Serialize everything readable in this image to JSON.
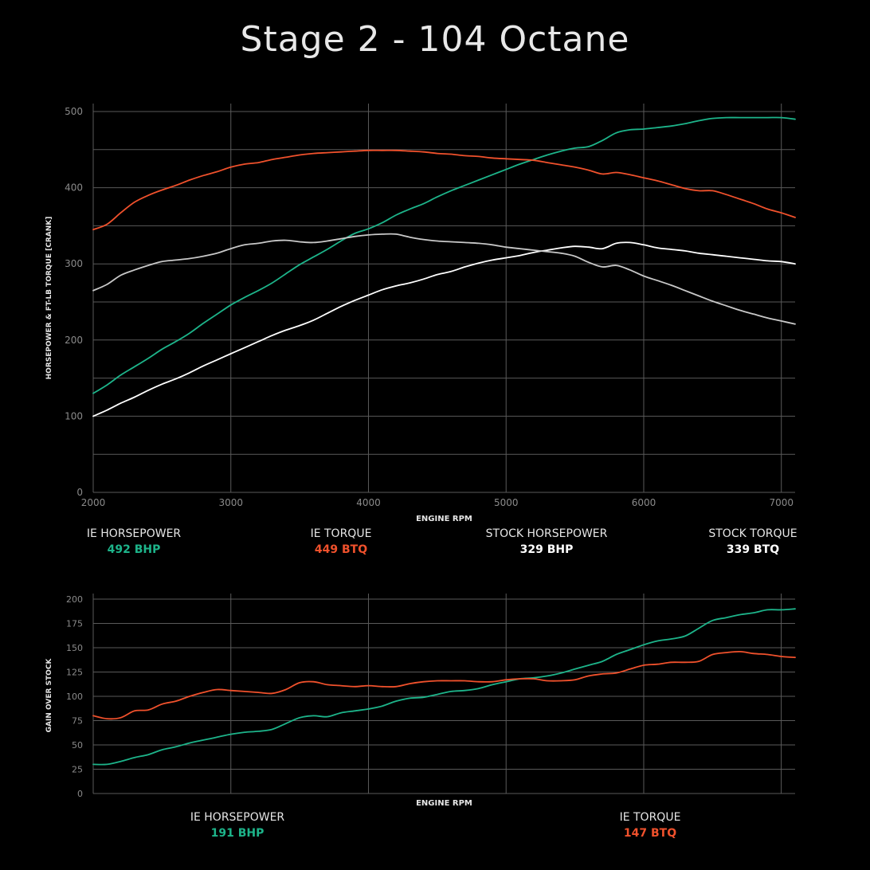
{
  "title": "Stage 2 - 104 Octane",
  "colors": {
    "background": "#000000",
    "ie_hp": "#1db48a",
    "ie_tq": "#f0512c",
    "stock_hp": "#ffffff",
    "stock_tq": "#c8c8c8",
    "grid": "#5a5a5a",
    "tick": "#8a8a8a"
  },
  "main_legend": [
    {
      "label": "IE HORSEPOWER",
      "value": "492 BHP",
      "color": "#1db48a"
    },
    {
      "label": "IE TORQUE",
      "value": "449 BTQ",
      "color": "#f0512c"
    },
    {
      "label": "STOCK HORSEPOWER",
      "value": "329 BHP",
      "color": "#ffffff"
    },
    {
      "label": "STOCK TORQUE",
      "value": "339 BTQ",
      "color": "#ffffff"
    }
  ],
  "gain_legend": [
    {
      "label": "IE HORSEPOWER",
      "value": "191 BHP",
      "color": "#1db48a"
    },
    {
      "label": "IE TORQUE",
      "value": "147 BTQ",
      "color": "#f0512c"
    }
  ],
  "chart_data": [
    {
      "type": "line",
      "title": "Stage 2 - 104 Octane",
      "xlabel": "ENGINE RPM",
      "ylabel": "HORSEPOWER & FT-LB TORQUE [CRANK]",
      "xlim": [
        2000,
        7100
      ],
      "ylim": [
        0,
        510
      ],
      "xticks": [
        2000,
        3000,
        4000,
        5000,
        6000,
        7000
      ],
      "yticks": [
        0,
        100,
        200,
        300,
        400,
        500
      ],
      "grid": true,
      "x": [
        2000,
        2100,
        2200,
        2300,
        2400,
        2500,
        2600,
        2700,
        2800,
        2900,
        3000,
        3100,
        3200,
        3300,
        3400,
        3500,
        3600,
        3700,
        3800,
        3900,
        4000,
        4100,
        4200,
        4300,
        4400,
        4500,
        4600,
        4700,
        4800,
        4900,
        5000,
        5100,
        5200,
        5300,
        5400,
        5500,
        5600,
        5700,
        5800,
        5900,
        6000,
        6100,
        6200,
        6300,
        6400,
        6500,
        6600,
        6700,
        6800,
        6900,
        7000,
        7100
      ],
      "series": [
        {
          "name": "IE HORSEPOWER",
          "color": "#1db48a",
          "values": [
            130,
            141,
            154,
            165,
            176,
            188,
            198,
            209,
            222,
            234,
            246,
            256,
            265,
            275,
            287,
            299,
            309,
            319,
            330,
            340,
            346,
            354,
            364,
            372,
            379,
            388,
            396,
            403,
            410,
            417,
            424,
            431,
            437,
            443,
            448,
            452,
            454,
            462,
            472,
            476,
            477,
            479,
            481,
            484,
            488,
            491,
            492,
            492,
            492,
            492,
            492,
            490
          ]
        },
        {
          "name": "IE TORQUE",
          "color": "#f0512c",
          "values": [
            345,
            352,
            367,
            381,
            390,
            397,
            403,
            410,
            416,
            421,
            427,
            431,
            433,
            437,
            440,
            443,
            445,
            446,
            447,
            448,
            449,
            449,
            449,
            448,
            447,
            445,
            444,
            442,
            441,
            439,
            438,
            437,
            436,
            433,
            430,
            427,
            423,
            418,
            420,
            417,
            413,
            409,
            404,
            399,
            396,
            396,
            391,
            385,
            379,
            372,
            367,
            361
          ]
        },
        {
          "name": "STOCK HORSEPOWER",
          "color": "#ffffff",
          "values": [
            100,
            108,
            117,
            125,
            134,
            142,
            149,
            157,
            166,
            174,
            182,
            190,
            198,
            206,
            213,
            219,
            226,
            235,
            244,
            252,
            259,
            266,
            271,
            275,
            280,
            286,
            290,
            296,
            301,
            305,
            308,
            311,
            315,
            318,
            321,
            323,
            322,
            320,
            327,
            328,
            325,
            321,
            319,
            317,
            314,
            312,
            310,
            308,
            306,
            304,
            303,
            300
          ]
        },
        {
          "name": "STOCK TORQUE",
          "color": "#c8c8c8",
          "values": [
            265,
            273,
            285,
            292,
            298,
            303,
            305,
            307,
            310,
            314,
            320,
            325,
            327,
            330,
            331,
            329,
            328,
            330,
            333,
            336,
            338,
            339,
            339,
            335,
            332,
            330,
            329,
            328,
            327,
            325,
            322,
            320,
            318,
            316,
            314,
            310,
            302,
            296,
            298,
            292,
            284,
            278,
            272,
            265,
            258,
            251,
            245,
            239,
            234,
            229,
            225,
            221
          ]
        }
      ]
    },
    {
      "type": "line",
      "xlabel": "ENGINE RPM",
      "ylabel": "GAIN OVER STOCK",
      "xlim": [
        2000,
        7100
      ],
      "ylim": [
        0,
        200
      ],
      "yticks": [
        0,
        25,
        50,
        75,
        100,
        125,
        150,
        175,
        200
      ],
      "grid": true,
      "x": [
        2000,
        2100,
        2200,
        2300,
        2400,
        2500,
        2600,
        2700,
        2800,
        2900,
        3000,
        3100,
        3200,
        3300,
        3400,
        3500,
        3600,
        3700,
        3800,
        3900,
        4000,
        4100,
        4200,
        4300,
        4400,
        4500,
        4600,
        4700,
        4800,
        4900,
        5000,
        5100,
        5200,
        5300,
        5400,
        5500,
        5600,
        5700,
        5800,
        5900,
        6000,
        6100,
        6200,
        6300,
        6400,
        6500,
        6600,
        6700,
        6800,
        6900,
        7000,
        7100
      ],
      "series": [
        {
          "name": "IE HORSEPOWER",
          "color": "#1db48a",
          "values": [
            30,
            30,
            33,
            37,
            40,
            45,
            48,
            52,
            55,
            58,
            61,
            63,
            64,
            66,
            72,
            78,
            80,
            79,
            83,
            85,
            87,
            90,
            95,
            98,
            99,
            102,
            105,
            106,
            108,
            112,
            115,
            118,
            119,
            121,
            124,
            128,
            132,
            136,
            143,
            148,
            153,
            157,
            159,
            162,
            170,
            178,
            181,
            184,
            186,
            189,
            189,
            190
          ]
        },
        {
          "name": "IE TORQUE",
          "color": "#f0512c",
          "values": [
            80,
            77,
            78,
            85,
            86,
            92,
            95,
            100,
            104,
            107,
            106,
            105,
            104,
            103,
            107,
            114,
            115,
            112,
            111,
            110,
            111,
            110,
            110,
            113,
            115,
            116,
            116,
            116,
            115,
            115,
            117,
            118,
            118,
            116,
            116,
            117,
            121,
            123,
            124,
            128,
            132,
            133,
            135,
            135,
            136,
            143,
            145,
            146,
            144,
            143,
            141,
            140
          ]
        }
      ]
    }
  ]
}
